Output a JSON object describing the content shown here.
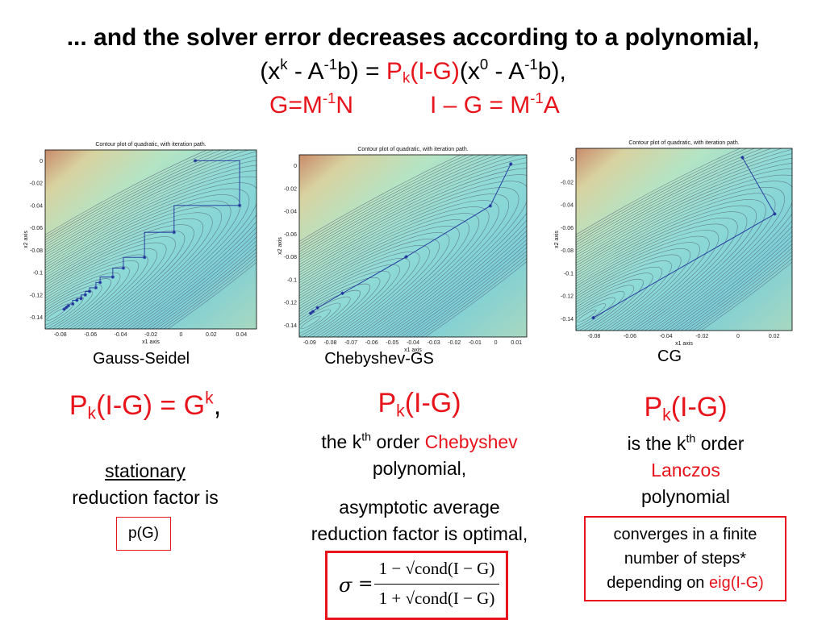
{
  "header": {
    "title": "... and the solver error decreases according to a polynomial,",
    "eq_x": "x",
    "eq_k": "k",
    "eq_minus_a": " - A",
    "eq_inv": "-1",
    "eq_b_equals": "b) = ",
    "eq_P": "P",
    "eq_sub_k": "k",
    "eq_IG": "(I-G)",
    "eq_open_x": "(x",
    "eq_zero": "0",
    "eq_minus_a2": " - A",
    "eq_inv2": "-1",
    "eq_b_end": "b),",
    "eq_open": "(",
    "g_def_1": "G=M",
    "g_def_inv": "-1",
    "g_def_2": "N",
    "ig_def_1": "I – G = M",
    "ig_def_inv": "-1",
    "ig_def_2": "A"
  },
  "plots": [
    {
      "title": "Contour plot of quadratic, with iteration path.",
      "xlabel": "x1 axis",
      "ylabel": "x2 axis",
      "xticks": [
        "-0.08",
        "-0.06",
        "-0.04",
        "-0.02",
        "0",
        "0.02",
        "0.04"
      ],
      "yticks": [
        "0",
        "-0.02",
        "-0.04",
        "-0.06",
        "-0.08",
        "-0.1",
        "-0.12",
        "-0.14"
      ],
      "caption": "Gauss-Seidel"
    },
    {
      "title": "Contour plot of quadratic, with iteration path.",
      "xlabel": "x1 axis",
      "ylabel": "x2 axis",
      "xticks": [
        "-0.09",
        "-0.08",
        "-0.07",
        "-0.06",
        "-0.05",
        "-0.04",
        "-0.03",
        "-0.02",
        "-0.01",
        "0",
        "0.01"
      ],
      "yticks": [
        "0",
        "-0.02",
        "-0.04",
        "-0.06",
        "-0.08",
        "-0.1",
        "-0.12",
        "-0.14"
      ],
      "caption": "Chebyshev-GS"
    },
    {
      "title": "Contour plot of quadratic, with iteration path.",
      "xlabel": "x1 axis",
      "ylabel": "x2 axis",
      "xticks": [
        "-0.08",
        "-0.06",
        "-0.04",
        "-0.02",
        "0",
        "0.02"
      ],
      "yticks": [
        "0",
        "-0.02",
        "-0.04",
        "-0.06",
        "-0.08",
        "-0.1",
        "-0.12",
        "-0.14"
      ],
      "caption": "CG"
    }
  ],
  "col1": {
    "p": "P",
    "k": "k",
    "rest": "(I-G) = G",
    "sup": "k",
    "comma": ",",
    "stationary": "stationary",
    "reduction": "reduction factor is",
    "rho": "p(G)"
  },
  "col2": {
    "p": "P",
    "k": "k",
    "rest": "(I-G)",
    "the_k": "the k",
    "th": "th",
    "order": " order ",
    "chebyshev": "Chebyshev",
    "polynomial": "polynomial,",
    "asym1": "asymptotic average",
    "asym2": "reduction factor is optimal,",
    "sigma": "σ",
    "eq": "=",
    "num": "1 − √cond(I − G)",
    "den": "1 + √cond(I − G)"
  },
  "col3": {
    "p": "P",
    "k": "k",
    "rest": "(I-G)",
    "is_the_k": "is the k",
    "th": "th",
    "order": " order",
    "lanczos": "Lanczos",
    "polynomial": "polynomial",
    "conv1": "converges in a finite",
    "conv2": "number of steps*",
    "conv3a": "depending on ",
    "conv3b": "eig(I-G)"
  },
  "colors": {
    "accent": "#e8141c",
    "path": "#1f2f9c"
  }
}
